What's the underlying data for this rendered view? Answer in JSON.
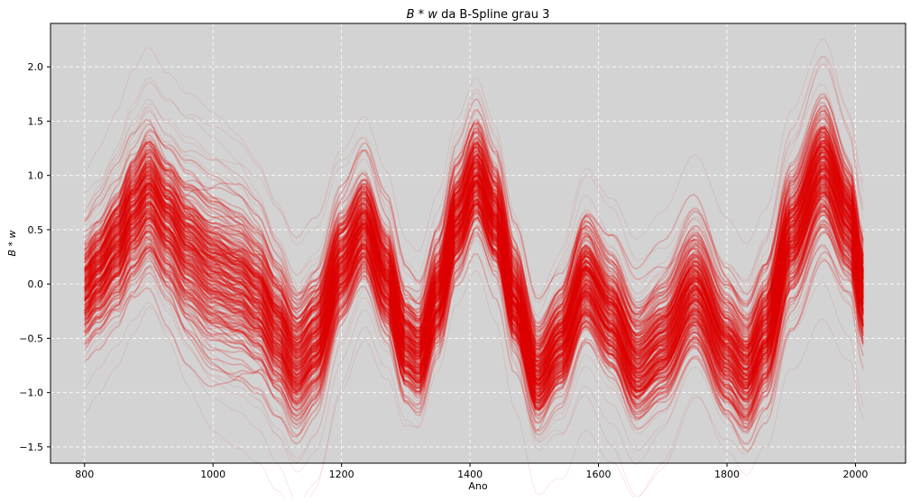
{
  "chart_data": {
    "type": "line",
    "title_math": "B * w",
    "title_text": " da B-Spline grau 3",
    "xlabel": "Ano",
    "ylabel": "B * w",
    "xlim": [
      747,
      2078
    ],
    "ylim": [
      -1.65,
      2.4
    ],
    "xticks": [
      800,
      1000,
      1200,
      1400,
      1600,
      1800,
      2000
    ],
    "yticks": [
      -1.5,
      -1.0,
      -0.5,
      0.0,
      0.5,
      1.0,
      1.5,
      2.0
    ],
    "xtick_labels": [
      "800",
      "1000",
      "1200",
      "1400",
      "1600",
      "1800",
      "2000"
    ],
    "ytick_labels": [
      "−1.5",
      "−1.0",
      "−0.5",
      "0.0",
      "0.5",
      "1.0",
      "1.5",
      "2.0"
    ],
    "grid": true,
    "background": "#d3d3d3",
    "line_color": "#dd0000",
    "mean_curve": {
      "x": [
        800,
        820,
        850,
        875,
        900,
        930,
        960,
        1000,
        1040,
        1070,
        1100,
        1130,
        1160,
        1200,
        1235,
        1270,
        1300,
        1320,
        1350,
        1380,
        1410,
        1440,
        1470,
        1505,
        1540,
        1580,
        1620,
        1660,
        1700,
        1750,
        1800,
        1830,
        1860,
        1900,
        1950,
        1990,
        2013
      ],
      "y": [
        -0.05,
        0.1,
        0.35,
        0.65,
        0.85,
        0.6,
        0.35,
        0.15,
        0.05,
        -0.1,
        -0.4,
        -0.7,
        -0.5,
        0.2,
        0.55,
        0.05,
        -0.55,
        -0.65,
        -0.1,
        0.6,
        1.0,
        0.6,
        -0.15,
        -0.85,
        -0.55,
        0.05,
        -0.3,
        -0.75,
        -0.55,
        -0.05,
        -0.6,
        -0.8,
        -0.45,
        0.45,
        1.1,
        0.6,
        -0.05
      ]
    },
    "band": {
      "x": [
        800,
        900,
        1000,
        1135,
        1235,
        1315,
        1410,
        1505,
        1585,
        1670,
        1755,
        1830,
        1950,
        2013
      ],
      "spread": [
        0.35,
        0.45,
        0.55,
        0.45,
        0.35,
        0.32,
        0.35,
        0.32,
        0.4,
        0.4,
        0.4,
        0.4,
        0.45,
        0.35
      ]
    }
  }
}
